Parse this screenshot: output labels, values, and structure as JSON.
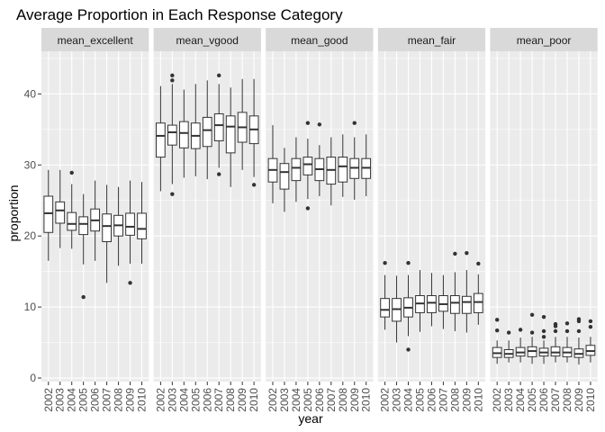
{
  "chart_data": {
    "type": "boxplot",
    "title": "Average Proportion in Each Response Category",
    "xlabel": "year",
    "ylabel": "proportion",
    "ylim": [
      -0.5,
      46
    ],
    "yticks": [
      0,
      10,
      20,
      30,
      40
    ],
    "categories": [
      "2002",
      "2003",
      "2004",
      "2005",
      "2006",
      "2007",
      "2008",
      "2009",
      "2010"
    ],
    "panels": [
      {
        "name": "mean_excellent",
        "boxes": [
          {
            "year": "2002",
            "min": 16.5,
            "q1": 20.5,
            "median": 23.2,
            "q3": 25.6,
            "max": 29.3,
            "outliers": []
          },
          {
            "year": "2003",
            "min": 18.3,
            "q1": 21.8,
            "median": 23.6,
            "q3": 24.8,
            "max": 29.3,
            "outliers": []
          },
          {
            "year": "2004",
            "min": 18.2,
            "q1": 20.8,
            "median": 21.7,
            "q3": 23.3,
            "max": 27.3,
            "outliers": [
              28.9
            ]
          },
          {
            "year": "2005",
            "min": 16.0,
            "q1": 20.2,
            "median": 21.7,
            "q3": 22.7,
            "max": 25.9,
            "outliers": [
              11.4
            ]
          },
          {
            "year": "2006",
            "min": 16.5,
            "q1": 20.7,
            "median": 22.2,
            "q3": 23.8,
            "max": 27.8,
            "outliers": []
          },
          {
            "year": "2007",
            "min": 13.4,
            "q1": 19.2,
            "median": 21.4,
            "q3": 23.1,
            "max": 27.2,
            "outliers": []
          },
          {
            "year": "2008",
            "min": 15.8,
            "q1": 20.0,
            "median": 21.5,
            "q3": 22.9,
            "max": 26.9,
            "outliers": []
          },
          {
            "year": "2009",
            "min": 16.1,
            "q1": 20.1,
            "median": 21.3,
            "q3": 23.2,
            "max": 27.8,
            "outliers": [
              13.4
            ]
          },
          {
            "year": "2010",
            "min": 16.1,
            "q1": 19.6,
            "median": 21.0,
            "q3": 23.2,
            "max": 27.6,
            "outliers": []
          }
        ]
      },
      {
        "name": "mean_vgood",
        "boxes": [
          {
            "year": "2002",
            "min": 26.3,
            "q1": 31.1,
            "median": 34.1,
            "q3": 35.9,
            "max": 41.1,
            "outliers": []
          },
          {
            "year": "2003",
            "min": 27.3,
            "q1": 32.8,
            "median": 34.6,
            "q3": 35.6,
            "max": 41.4,
            "outliers": [
              42.6,
              41.9,
              25.9
            ]
          },
          {
            "year": "2004",
            "min": 28.2,
            "q1": 32.4,
            "median": 34.5,
            "q3": 36.1,
            "max": 40.6,
            "outliers": []
          },
          {
            "year": "2005",
            "min": 28.4,
            "q1": 32.3,
            "median": 34.1,
            "q3": 35.9,
            "max": 41.4,
            "outliers": []
          },
          {
            "year": "2006",
            "min": 28.0,
            "q1": 32.6,
            "median": 34.9,
            "q3": 36.7,
            "max": 41.9,
            "outliers": []
          },
          {
            "year": "2007",
            "min": 29.6,
            "q1": 33.4,
            "median": 35.6,
            "q3": 37.2,
            "max": 41.4,
            "outliers": [
              42.6,
              28.7
            ]
          },
          {
            "year": "2008",
            "min": 26.9,
            "q1": 31.7,
            "median": 35.4,
            "q3": 36.9,
            "max": 40.9,
            "outliers": []
          },
          {
            "year": "2009",
            "min": 29.3,
            "q1": 33.2,
            "median": 35.3,
            "q3": 37.4,
            "max": 42.1,
            "outliers": []
          },
          {
            "year": "2010",
            "min": 28.3,
            "q1": 33.0,
            "median": 35.0,
            "q3": 36.9,
            "max": 42.1,
            "outliers": [
              27.2
            ]
          }
        ]
      },
      {
        "name": "mean_good",
        "boxes": [
          {
            "year": "2002",
            "min": 24.6,
            "q1": 27.6,
            "median": 29.3,
            "q3": 30.9,
            "max": 35.6,
            "outliers": []
          },
          {
            "year": "2003",
            "min": 23.4,
            "q1": 26.6,
            "median": 29.0,
            "q3": 30.2,
            "max": 32.4,
            "outliers": []
          },
          {
            "year": "2004",
            "min": 24.8,
            "q1": 27.8,
            "median": 29.6,
            "q3": 30.9,
            "max": 33.9,
            "outliers": []
          },
          {
            "year": "2005",
            "min": 25.2,
            "q1": 28.6,
            "median": 30.1,
            "q3": 31.1,
            "max": 33.7,
            "outliers": [
              35.9,
              23.9
            ]
          },
          {
            "year": "2006",
            "min": 25.6,
            "q1": 27.8,
            "median": 29.4,
            "q3": 30.9,
            "max": 32.8,
            "outliers": [
              35.7
            ]
          },
          {
            "year": "2007",
            "min": 24.3,
            "q1": 27.3,
            "median": 29.3,
            "q3": 31.1,
            "max": 33.9,
            "outliers": []
          },
          {
            "year": "2008",
            "min": 25.5,
            "q1": 27.6,
            "median": 29.8,
            "q3": 31.1,
            "max": 34.3,
            "outliers": []
          },
          {
            "year": "2009",
            "min": 25.1,
            "q1": 28.1,
            "median": 29.6,
            "q3": 30.9,
            "max": 33.9,
            "outliers": [
              35.9
            ]
          },
          {
            "year": "2010",
            "min": 25.6,
            "q1": 28.1,
            "median": 29.6,
            "q3": 30.9,
            "max": 34.3,
            "outliers": []
          }
        ]
      },
      {
        "name": "mean_fair",
        "boxes": [
          {
            "year": "2002",
            "min": 6.8,
            "q1": 8.6,
            "median": 9.6,
            "q3": 11.2,
            "max": 14.5,
            "outliers": [
              16.2
            ]
          },
          {
            "year": "2003",
            "min": 5.0,
            "q1": 8.0,
            "median": 9.7,
            "q3": 11.2,
            "max": 14.4,
            "outliers": []
          },
          {
            "year": "2004",
            "min": 5.9,
            "q1": 8.6,
            "median": 9.9,
            "q3": 11.3,
            "max": 14.5,
            "outliers": [
              16.2,
              4.0
            ]
          },
          {
            "year": "2005",
            "min": 6.5,
            "q1": 9.2,
            "median": 10.5,
            "q3": 11.6,
            "max": 15.2,
            "outliers": []
          },
          {
            "year": "2006",
            "min": 7.3,
            "q1": 9.2,
            "median": 10.6,
            "q3": 11.6,
            "max": 14.8,
            "outliers": []
          },
          {
            "year": "2007",
            "min": 6.9,
            "q1": 9.4,
            "median": 10.4,
            "q3": 11.6,
            "max": 14.5,
            "outliers": []
          },
          {
            "year": "2008",
            "min": 6.6,
            "q1": 9.1,
            "median": 10.6,
            "q3": 11.6,
            "max": 14.9,
            "outliers": [
              17.5
            ]
          },
          {
            "year": "2009",
            "min": 6.4,
            "q1": 9.1,
            "median": 10.7,
            "q3": 11.5,
            "max": 15.2,
            "outliers": [
              17.6
            ]
          },
          {
            "year": "2010",
            "min": 7.5,
            "q1": 9.2,
            "median": 10.7,
            "q3": 11.9,
            "max": 14.6,
            "outliers": [
              16.1
            ]
          }
        ]
      },
      {
        "name": "mean_poor",
        "boxes": [
          {
            "year": "2002",
            "min": 2.0,
            "q1": 2.9,
            "median": 3.5,
            "q3": 4.3,
            "max": 5.3,
            "outliers": [
              8.2,
              6.7
            ]
          },
          {
            "year": "2003",
            "min": 2.2,
            "q1": 2.9,
            "median": 3.4,
            "q3": 4.0,
            "max": 5.3,
            "outliers": [
              6.4
            ]
          },
          {
            "year": "2004",
            "min": 2.2,
            "q1": 3.1,
            "median": 3.6,
            "q3": 4.3,
            "max": 5.7,
            "outliers": [
              6.8
            ]
          },
          {
            "year": "2005",
            "min": 2.0,
            "q1": 3.0,
            "median": 3.8,
            "q3": 4.4,
            "max": 5.8,
            "outliers": [
              8.9,
              6.4
            ]
          },
          {
            "year": "2006",
            "min": 2.0,
            "q1": 3.1,
            "median": 3.6,
            "q3": 4.2,
            "max": 5.3,
            "outliers": [
              8.6,
              6.6,
              5.8
            ]
          },
          {
            "year": "2007",
            "min": 2.2,
            "q1": 3.1,
            "median": 3.6,
            "q3": 4.4,
            "max": 5.8,
            "outliers": [
              7.6,
              7.3,
              6.6
            ]
          },
          {
            "year": "2008",
            "min": 2.2,
            "q1": 3.0,
            "median": 3.6,
            "q3": 4.3,
            "max": 5.8,
            "outliers": [
              7.7,
              6.6
            ]
          },
          {
            "year": "2009",
            "min": 1.9,
            "q1": 2.9,
            "median": 3.4,
            "q3": 4.1,
            "max": 5.7,
            "outliers": [
              8.3,
              8.0,
              6.6
            ]
          },
          {
            "year": "2010",
            "min": 2.2,
            "q1": 3.2,
            "median": 3.8,
            "q3": 4.6,
            "max": 5.8,
            "outliers": [
              8.0,
              7.2
            ]
          }
        ]
      }
    ]
  }
}
